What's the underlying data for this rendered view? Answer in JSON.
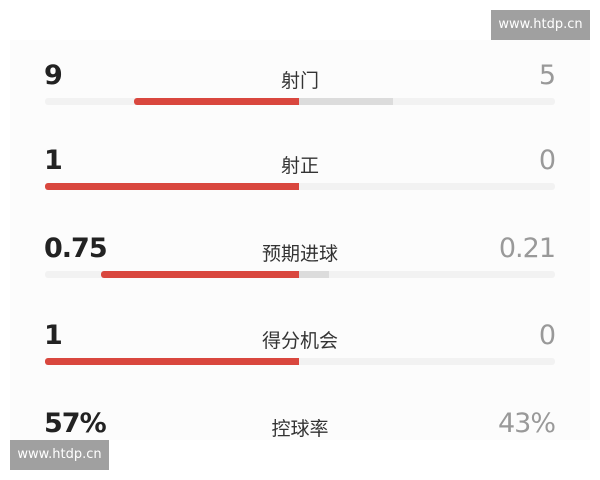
{
  "stats": [
    {
      "label": "射门",
      "home": "9",
      "away": "5",
      "home_fill": 0.65,
      "away_fill": 0.37
    },
    {
      "label": "射正",
      "home": "1",
      "away": "0",
      "home_fill": 1.0,
      "away_fill": 0
    },
    {
      "label": "预期进球",
      "home": "0.75",
      "away": "0.21",
      "home_fill": 0.78,
      "away_fill": 0.12
    },
    {
      "label": "得分机会",
      "home": "1",
      "away": "0",
      "home_fill": 1.0,
      "away_fill": 0
    },
    {
      "label": "控球率",
      "home": "57%",
      "away": "43%"
    }
  ],
  "watermark": "www.htdp.cn",
  "colors": {
    "home": "#d9473e",
    "away": "#dcdcdc"
  }
}
